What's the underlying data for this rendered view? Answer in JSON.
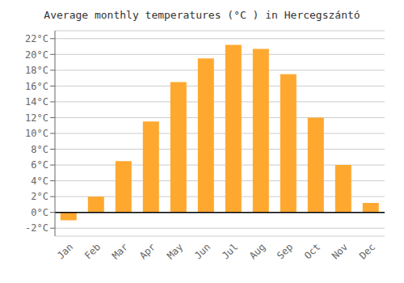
{
  "chart_data": {
    "type": "bar",
    "title": "Average monthly temperatures (°C ) in Hercegszántó",
    "categories": [
      "Jan",
      "Feb",
      "Mar",
      "Apr",
      "May",
      "Jun",
      "Jul",
      "Aug",
      "Sep",
      "Oct",
      "Nov",
      "Dec"
    ],
    "values": [
      -1.0,
      2.0,
      6.5,
      11.5,
      16.5,
      19.5,
      21.2,
      20.7,
      17.5,
      12.0,
      6.0,
      1.2
    ],
    "color": "#FFA830",
    "ylim": [
      -3,
      23
    ],
    "yticks": [
      {
        "value": -2,
        "label": "-2°C"
      },
      {
        "value": 0,
        "label": "0°C"
      },
      {
        "value": 2,
        "label": "2°C"
      },
      {
        "value": 4,
        "label": "4°C"
      },
      {
        "value": 6,
        "label": "6°C"
      },
      {
        "value": 8,
        "label": "8°C"
      },
      {
        "value": 10,
        "label": "10°C"
      },
      {
        "value": 12,
        "label": "12°C"
      },
      {
        "value": 14,
        "label": "14°C"
      },
      {
        "value": 16,
        "label": "16°C"
      },
      {
        "value": 18,
        "label": "18°C"
      },
      {
        "value": 20,
        "label": "20°C"
      },
      {
        "value": 22,
        "label": "22°C"
      }
    ],
    "grid": true
  }
}
